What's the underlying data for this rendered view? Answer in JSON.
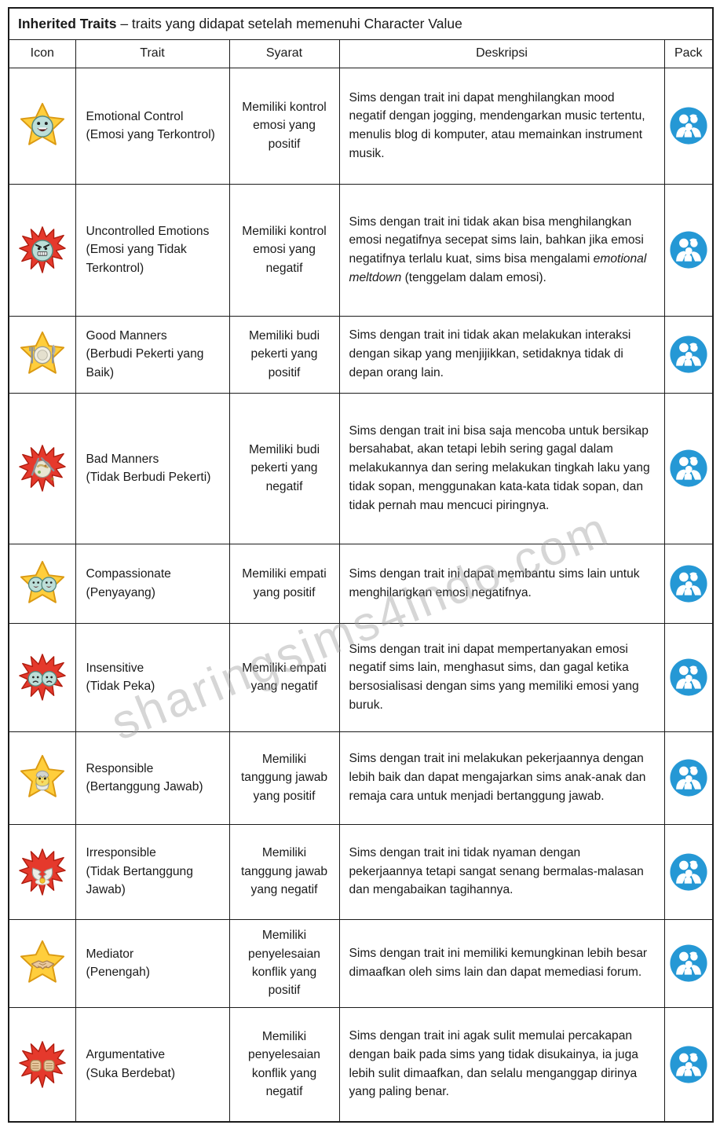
{
  "title": {
    "bold": "Inherited Traits",
    "rest": " – traits yang didapat setelah memenuhi Character Value"
  },
  "columns": [
    "Icon",
    "Trait",
    "Syarat",
    "Deskripsi",
    "Pack"
  ],
  "watermark": "sharingsims4indo.com",
  "pack": {
    "name": "parenthood-pack-icon",
    "color": "#2598d5"
  },
  "colors": {
    "border": "#1b1b1b",
    "star_gold": "#ffce3c",
    "burst_red": "#e5392c",
    "face_teal": "#bcded8",
    "pack_blue": "#2598d5"
  },
  "rows": [
    {
      "icon": "emotional-control-icon",
      "trait_en": "Emotional Control",
      "trait_id": "(Emosi yang Terkontrol)",
      "syarat": "Memiliki kontrol emosi yang positif",
      "deskripsi": [
        {
          "text": "Sims dengan trait ini dapat menghilangkan mood negatif dengan jogging, mendengarkan music tertentu, menulis blog di komputer, atau memainkan instrument musik.",
          "italic": false
        }
      ]
    },
    {
      "icon": "uncontrolled-emotions-icon",
      "trait_en": "Uncontrolled Emotions",
      "trait_id": "(Emosi yang Tidak Terkontrol)",
      "syarat": "Memiliki kontrol emosi yang negatif",
      "deskripsi": [
        {
          "text": "Sims dengan trait ini tidak akan bisa menghilangkan emosi negatifnya secepat sims lain, bahkan jika emosi negatifnya terlalu kuat, sims bisa mengalami ",
          "italic": false
        },
        {
          "text": "emotional meltdown",
          "italic": true
        },
        {
          "text": " (tenggelam dalam emosi).",
          "italic": false
        }
      ]
    },
    {
      "icon": "good-manners-icon",
      "trait_en": "Good Manners",
      "trait_id": "(Berbudi Pekerti yang Baik)",
      "syarat": "Memiliki budi pekerti yang positif",
      "deskripsi": [
        {
          "text": "Sims dengan trait ini tidak akan melakukan interaksi dengan sikap yang menjijikkan, setidaknya tidak di depan orang lain.",
          "italic": false
        }
      ]
    },
    {
      "icon": "bad-manners-icon",
      "trait_en": "Bad Manners",
      "trait_id": "(Tidak Berbudi Pekerti)",
      "syarat": "Memiliki budi pekerti yang negatif",
      "deskripsi": [
        {
          "text": "Sims dengan trait ini bisa saja mencoba untuk bersikap bersahabat, akan tetapi lebih sering gagal dalam melakukannya dan sering melakukan tingkah laku yang tidak sopan, menggunakan kata-kata tidak sopan, dan tidak pernah mau mencuci piringnya.",
          "italic": false
        }
      ]
    },
    {
      "icon": "compassionate-icon",
      "trait_en": "Compassionate",
      "trait_id": "(Penyayang)",
      "syarat": "Memiliki empati yang positif",
      "deskripsi": [
        {
          "text": "Sims dengan trait ini dapat membantu sims lain untuk menghilangkan emosi negatifnya.",
          "italic": false
        }
      ]
    },
    {
      "icon": "insensitive-icon",
      "trait_en": "Insensitive",
      "trait_id": "(Tidak Peka)",
      "syarat": "Memiliki empati yang negatif",
      "deskripsi": [
        {
          "text": "Sims dengan trait ini dapat mempertanyakan emosi negatif sims lain, menghasut sims, dan gagal ketika bersosialisasi dengan sims yang memiliki emosi yang buruk.",
          "italic": false
        }
      ]
    },
    {
      "icon": "responsible-icon",
      "trait_en": "Responsible",
      "trait_id": "(Bertanggung Jawab)",
      "syarat": "Memiliki tanggung jawab yang positif",
      "deskripsi": [
        {
          "text": "Sims dengan trait ini melakukan pekerjaannya dengan lebih baik dan dapat mengajarkan sims anak-anak dan remaja cara untuk menjadi bertanggung jawab.",
          "italic": false
        }
      ]
    },
    {
      "icon": "irresponsible-icon",
      "trait_en": "Irresponsible",
      "trait_id": "(Tidak Bertanggung Jawab)",
      "syarat": "Memiliki tanggung jawab yang negatif",
      "deskripsi": [
        {
          "text": "Sims dengan trait ini tidak nyaman dengan pekerjaannya tetapi sangat senang bermalas-malasan dan mengabaikan tagihannya.",
          "italic": false
        }
      ]
    },
    {
      "icon": "mediator-icon",
      "trait_en": "Mediator",
      "trait_id": "(Penengah)",
      "syarat": "Memiliki penyelesaian konflik yang positif",
      "deskripsi": [
        {
          "text": "Sims dengan trait ini memiliki kemungkinan lebih besar dimaafkan oleh sims lain dan dapat memediasi forum.",
          "italic": false
        }
      ]
    },
    {
      "icon": "argumentative-icon",
      "trait_en": "Argumentative",
      "trait_id": "(Suka Berdebat)",
      "syarat": "Memiliki penyelesaian konflik yang negatif",
      "deskripsi": [
        {
          "text": "Sims dengan trait ini agak sulit memulai percakapan dengan baik pada sims yang tidak disukainya, ia juga lebih sulit dimaafkan, dan selalu menganggap dirinya yang paling benar.",
          "italic": false
        }
      ]
    }
  ]
}
